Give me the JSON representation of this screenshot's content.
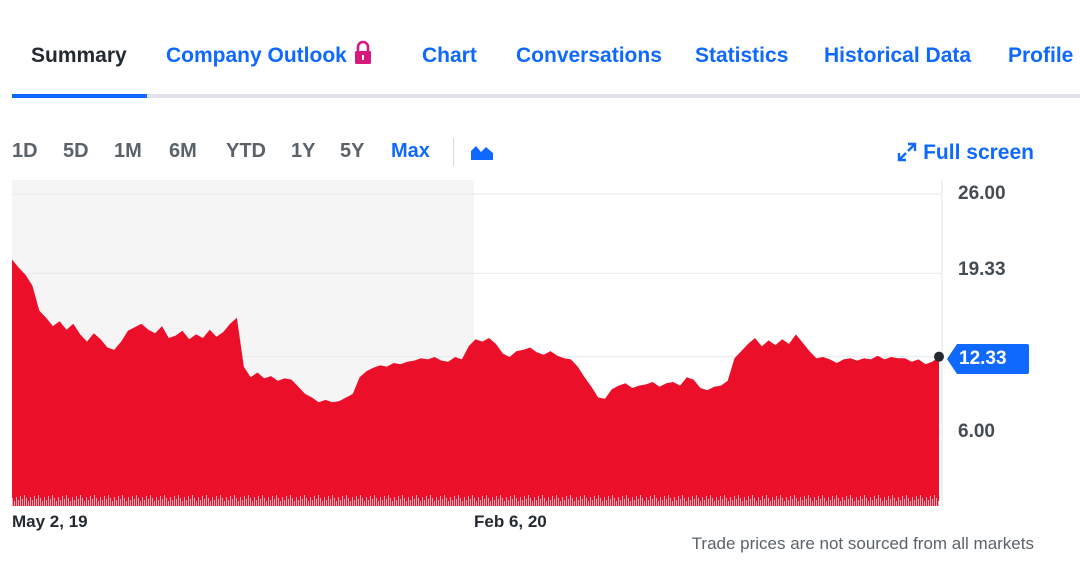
{
  "tabs": [
    {
      "label": "Summary",
      "active": true
    },
    {
      "label": "Company Outlook",
      "active": false,
      "icon": "lock-icon"
    },
    {
      "label": "Chart",
      "active": false
    },
    {
      "label": "Conversations",
      "active": false
    },
    {
      "label": "Statistics",
      "active": false
    },
    {
      "label": "Historical Data",
      "active": false
    },
    {
      "label": "Profile",
      "active": false
    }
  ],
  "ranges": {
    "items": [
      "1D",
      "5D",
      "1M",
      "6M",
      "YTD",
      "1Y",
      "5Y",
      "Max"
    ],
    "selected": "Max"
  },
  "toolbar": {
    "chart_type_icon": "area-chart-icon",
    "fullscreen_icon": "expand-icon",
    "fullscreen_label": "Full screen"
  },
  "colors": {
    "accent": "#0f69ff",
    "series": "#eb0f29",
    "lock": "#d6197a"
  },
  "chart_data": {
    "type": "area",
    "x_tick_labels": [
      "May 2, 19",
      "Feb 6, 20"
    ],
    "y_tick_labels": [
      "26.00",
      "19.33",
      "12.33",
      "6.00"
    ],
    "y_ticks": [
      26.0,
      19.33,
      12.33,
      6.0
    ],
    "ylim": [
      3.0,
      27.0
    ],
    "current_price": 12.33,
    "current_price_label": "12.33",
    "grid": true,
    "series": [
      {
        "values": [
          20.5,
          19.8,
          19.2,
          18.3,
          16.2,
          15.6,
          14.9,
          15.3,
          14.6,
          15.1,
          14.2,
          13.6,
          14.3,
          13.8,
          13.1,
          12.9,
          13.6,
          14.5,
          14.8,
          15.1,
          14.6,
          14.3,
          14.9,
          13.9,
          14.1,
          14.5,
          13.8,
          14.2,
          13.9,
          14.6,
          14.0,
          14.4,
          15.1,
          15.6,
          11.5,
          10.6,
          11.0,
          10.5,
          10.7,
          10.3,
          10.5,
          10.4,
          9.8,
          9.2,
          8.9,
          8.5,
          8.7,
          8.5,
          8.6,
          8.9,
          9.2,
          10.6,
          11.1,
          11.4,
          11.6,
          11.5,
          11.8,
          11.7,
          11.9,
          12.0,
          12.2,
          12.1,
          12.3,
          12.0,
          11.9,
          12.3,
          12.1,
          13.2,
          13.8,
          13.6,
          13.9,
          13.4,
          12.6,
          12.3,
          12.8,
          12.9,
          13.1,
          12.7,
          12.5,
          12.8,
          12.4,
          12.2,
          12.1,
          11.5,
          10.6,
          9.8,
          8.9,
          8.8,
          9.6,
          9.9,
          10.1,
          9.7,
          9.9,
          10.0,
          10.2,
          9.8,
          10.1,
          10.2,
          9.9,
          10.6,
          10.4,
          9.7,
          9.5,
          9.8,
          9.9,
          10.3,
          12.2,
          12.8,
          13.4,
          13.9,
          13.2,
          13.7,
          13.3,
          13.8,
          13.4,
          14.2,
          13.5,
          12.8,
          12.2,
          12.3,
          12.1,
          11.8,
          12.1,
          12.2,
          12.0,
          12.2,
          12.1,
          12.4,
          12.1,
          12.3,
          12.2,
          12.2,
          11.9,
          12.1,
          11.7,
          11.9,
          12.33
        ]
      }
    ]
  },
  "footer": {
    "disclaimer": "Trade prices are not sourced from all markets"
  }
}
